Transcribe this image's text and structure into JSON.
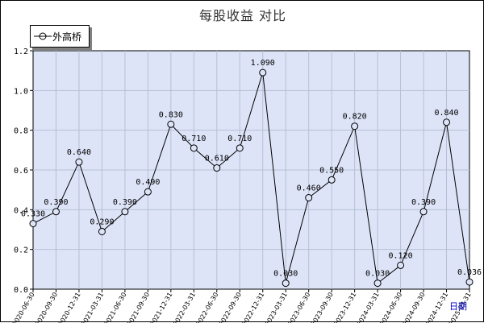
{
  "chart_data": {
    "type": "line",
    "title": "每股收益  对比",
    "xlabel": "日期",
    "ylabel": "",
    "ylim": [
      0,
      1.2
    ],
    "yticks": [
      "0.0",
      "0.2",
      "0.4",
      "0.6",
      "0.8",
      "1.0",
      "1.2"
    ],
    "legend_position": "top-left",
    "grid": true,
    "colors": {
      "line": "#000000",
      "plot_bg": "#dde4f7",
      "grid": "#b7bfd6"
    },
    "categories": [
      "2020-06-30",
      "2020-09-30",
      "2020-12-31",
      "2021-03-31",
      "2021-06-30",
      "2021-09-30",
      "2021-12-31",
      "2022-03-31",
      "2022-06-30",
      "2022-09-30",
      "2022-12-31",
      "2023-03-31",
      "2023-06-30",
      "2023-09-30",
      "2023-12-31",
      "2024-03-31",
      "2024-06-30",
      "2024-09-30",
      "2024-12-31",
      "2025-03-31"
    ],
    "series": [
      {
        "name": "外高桥",
        "values": [
          0.33,
          0.39,
          0.64,
          0.29,
          0.39,
          0.49,
          0.83,
          0.71,
          0.61,
          0.71,
          1.09,
          0.03,
          0.46,
          0.55,
          0.82,
          0.03,
          0.12,
          0.39,
          0.84,
          0.036
        ],
        "labels": [
          "0.330",
          "0.390",
          "0.640",
          "0.290",
          "0.390",
          "0.490",
          "0.830",
          "0.710",
          "0.610",
          "0.710",
          "1.090",
          "0.030",
          "0.460",
          "0.550",
          "0.820",
          "0.030",
          "0.120",
          "0.390",
          "0.840",
          "0.036"
        ]
      }
    ]
  }
}
